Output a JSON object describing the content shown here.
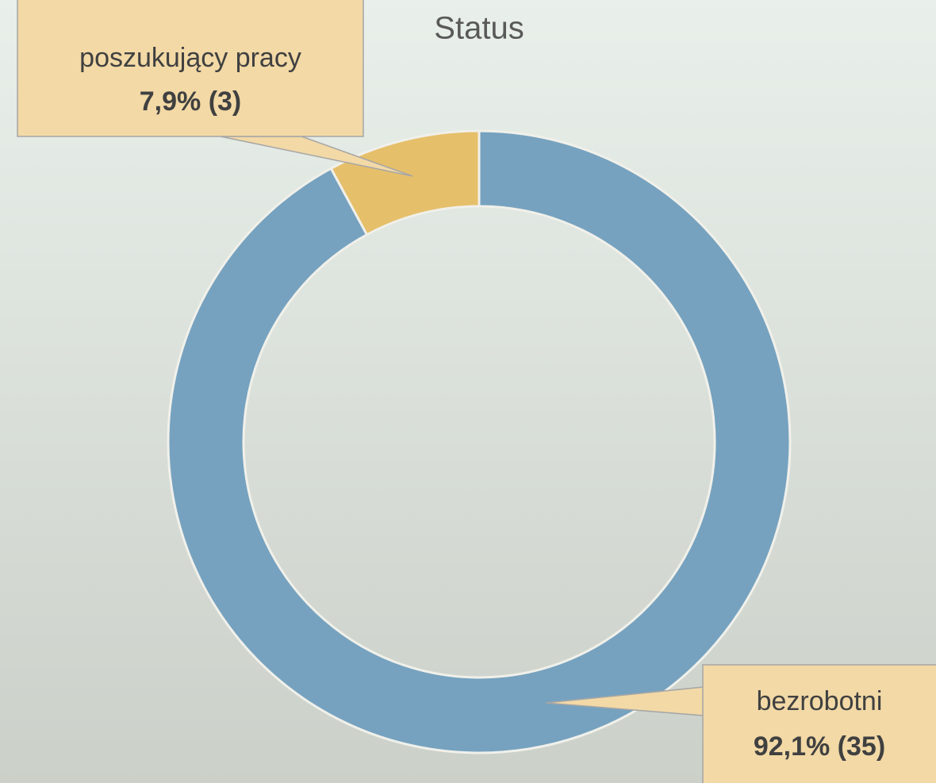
{
  "chart_data": {
    "type": "donut",
    "title": "Status",
    "categories": [
      "bezrobotni",
      "poszukujący pracy"
    ],
    "values": [
      92.1,
      7.9
    ],
    "counts": [
      35,
      3
    ],
    "value_labels": [
      "92,1% (35)",
      "7,9% (3)"
    ],
    "colors": [
      "#76a2bf",
      "#e6bf6a"
    ]
  }
}
